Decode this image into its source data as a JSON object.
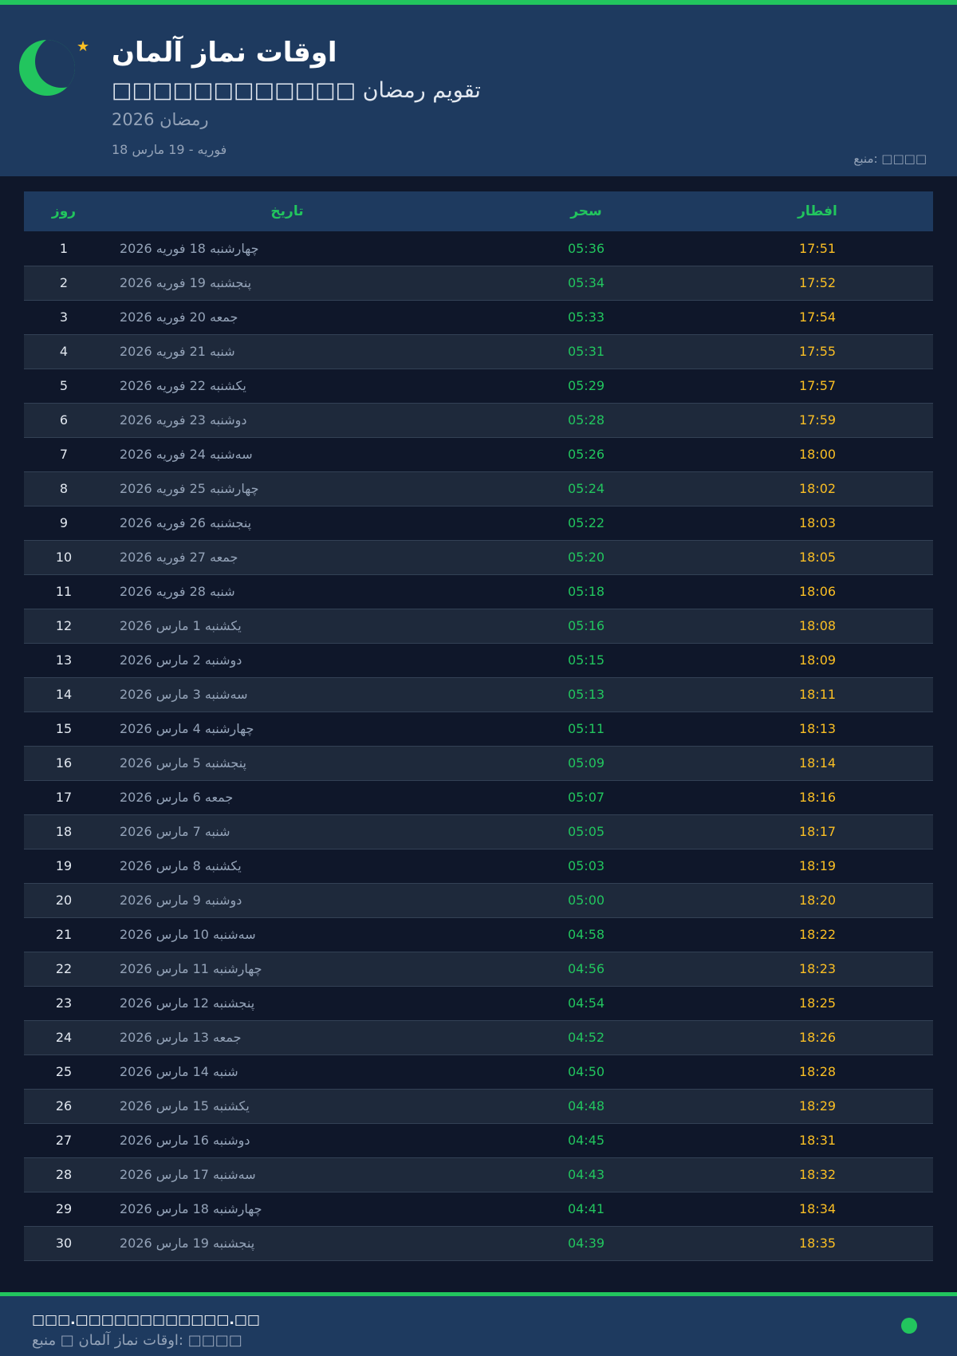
{
  "header": {
    "title": "اوقات نماز آلمان",
    "subtitle": "□□□□□□□□□□□□ تقویم رمضان",
    "year": "رمضان 2026",
    "range": "18 فوریه - 19 مارس",
    "source": "منبع: □□□□"
  },
  "table": {
    "columns": [
      "روز",
      "تاریخ",
      "سحر",
      "افطار"
    ],
    "rows": [
      [
        "1",
        "چهارشنبه 18 فوریه 2026",
        "05:36",
        "17:51"
      ],
      [
        "2",
        "پنجشنبه 19 فوریه 2026",
        "05:34",
        "17:52"
      ],
      [
        "3",
        "جمعه 20 فوریه 2026",
        "05:33",
        "17:54"
      ],
      [
        "4",
        "شنبه 21 فوریه 2026",
        "05:31",
        "17:55"
      ],
      [
        "5",
        "یکشنبه 22 فوریه 2026",
        "05:29",
        "17:57"
      ],
      [
        "6",
        "دوشنبه 23 فوریه 2026",
        "05:28",
        "17:59"
      ],
      [
        "7",
        "سه‌شنبه 24 فوریه 2026",
        "05:26",
        "18:00"
      ],
      [
        "8",
        "چهارشنبه 25 فوریه 2026",
        "05:24",
        "18:02"
      ],
      [
        "9",
        "پنجشنبه 26 فوریه 2026",
        "05:22",
        "18:03"
      ],
      [
        "10",
        "جمعه 27 فوریه 2026",
        "05:20",
        "18:05"
      ],
      [
        "11",
        "شنبه 28 فوریه 2026",
        "05:18",
        "18:06"
      ],
      [
        "12",
        "یکشنبه 1 مارس 2026",
        "05:16",
        "18:08"
      ],
      [
        "13",
        "دوشنبه 2 مارس 2026",
        "05:15",
        "18:09"
      ],
      [
        "14",
        "سه‌شنبه 3 مارس 2026",
        "05:13",
        "18:11"
      ],
      [
        "15",
        "چهارشنبه 4 مارس 2026",
        "05:11",
        "18:13"
      ],
      [
        "16",
        "پنجشنبه 5 مارس 2026",
        "05:09",
        "18:14"
      ],
      [
        "17",
        "جمعه 6 مارس 2026",
        "05:07",
        "18:16"
      ],
      [
        "18",
        "شنبه 7 مارس 2026",
        "05:05",
        "18:17"
      ],
      [
        "19",
        "یکشنبه 8 مارس 2026",
        "05:03",
        "18:19"
      ],
      [
        "20",
        "دوشنبه 9 مارس 2026",
        "05:00",
        "18:20"
      ],
      [
        "21",
        "سه‌شنبه 10 مارس 2026",
        "04:58",
        "18:22"
      ],
      [
        "22",
        "چهارشنبه 11 مارس 2026",
        "04:56",
        "18:23"
      ],
      [
        "23",
        "پنجشنبه 12 مارس 2026",
        "04:54",
        "18:25"
      ],
      [
        "24",
        "جمعه 13 مارس 2026",
        "04:52",
        "18:26"
      ],
      [
        "25",
        "شنبه 14 مارس 2026",
        "04:50",
        "18:28"
      ],
      [
        "26",
        "یکشنبه 15 مارس 2026",
        "04:48",
        "18:29"
      ],
      [
        "27",
        "دوشنبه 16 مارس 2026",
        "04:45",
        "18:31"
      ],
      [
        "28",
        "سه‌شنبه 17 مارس 2026",
        "04:43",
        "18:32"
      ],
      [
        "29",
        "چهارشنبه 18 مارس 2026",
        "04:41",
        "18:34"
      ],
      [
        "30",
        "پنجشنبه 19 مارس 2026",
        "04:39",
        "18:35"
      ]
    ]
  },
  "footer": {
    "site": "□□□.□□□□□□□□□□□□.□□",
    "text": "اوقات نماز آلمان □ منبع: □□□□"
  },
  "colors": {
    "accent": "#22c55e",
    "iftar": "#fbbf24",
    "header_bg": "#1e3a5f",
    "page_bg": "#0f172a"
  },
  "icons": {
    "logo": "crescent-moon-icon",
    "star": "star-icon",
    "status": "status-dot-icon"
  }
}
